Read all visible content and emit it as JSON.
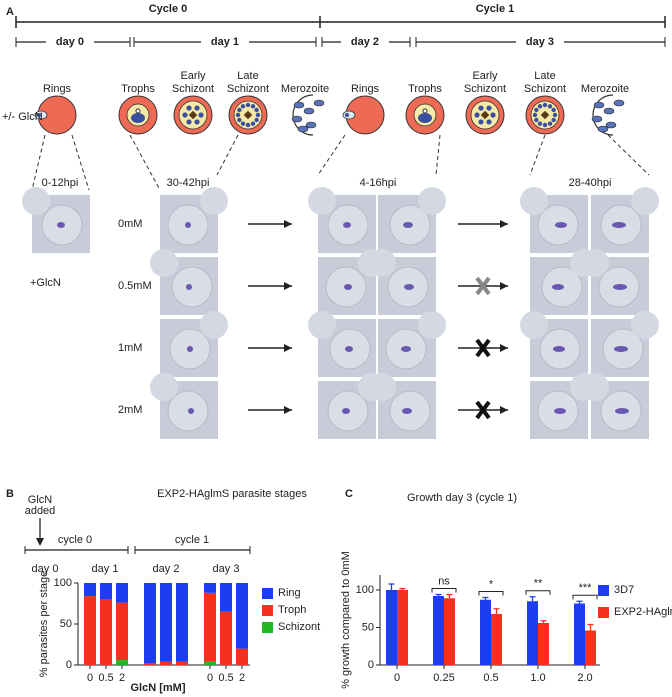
{
  "panel_labels": [
    "A",
    "B",
    "C"
  ],
  "panel_a": {
    "cycles": [
      "Cycle 0",
      "Cycle 1"
    ],
    "days": [
      "day 0",
      "day 1",
      "day 2",
      "day 3"
    ],
    "stages": [
      "Rings",
      "Trophs",
      "Early Schizont",
      "Late Schizont",
      "Merozoite",
      "Rings",
      "Trophs",
      "Early Schizont",
      "Late Schizont",
      "Merozoite"
    ],
    "treatment": "+/- GlcN",
    "timepoints": [
      "0-12hpi",
      "30-42hpi",
      "4-16hpi",
      "28-40hpi"
    ],
    "glcn_label": "+GlcN",
    "concentrations": [
      "0mM",
      "0.5mM",
      "1mM",
      "2mM"
    ]
  },
  "chart_data": [
    {
      "type": "bar",
      "stacked": true,
      "title": "EXP2-HAglmS parasite stages",
      "annotation_lines": [
        "GlcN",
        "added"
      ],
      "cycles": [
        "cycle 0",
        "cycle 1"
      ],
      "days": [
        "day 0",
        "day 1",
        "day 2",
        "day 3"
      ],
      "ylabel": "% parasites per stage",
      "xlabel": "GlcN [mM]",
      "categories": [
        "0",
        "0.5",
        "2",
        null,
        null,
        null,
        "0",
        "0.5",
        "2"
      ],
      "series": [
        {
          "name": "Schizont",
          "color": "#22b822",
          "values": [
            0,
            0,
            6,
            0,
            0,
            0,
            4,
            0,
            0
          ]
        },
        {
          "name": "Troph",
          "color": "#f4301e",
          "values": [
            84,
            80,
            70,
            2,
            4,
            4,
            84,
            65,
            20
          ]
        },
        {
          "name": "Ring",
          "color": "#1c3ef0",
          "values": [
            16,
            20,
            24,
            98,
            96,
            96,
            12,
            35,
            80
          ]
        }
      ],
      "ylim": [
        0,
        100
      ],
      "yticks": [
        0,
        50,
        100
      ],
      "legend": "right"
    },
    {
      "type": "bar",
      "title": "Growth day 3 (cycle 1)",
      "ylabel": "% growth compared to 0mM",
      "categories": [
        "0",
        "0.25",
        "0.5",
        "1.0",
        "2.0"
      ],
      "series": [
        {
          "name": "3D7",
          "color": "#1c3ef0",
          "values": [
            100,
            92,
            87,
            85,
            82
          ],
          "errors": [
            8,
            2,
            3,
            6,
            3
          ]
        },
        {
          "name": "EXP2-HAglmS",
          "color": "#f4301e",
          "values": [
            100,
            89,
            68,
            56,
            46
          ],
          "errors": [
            2,
            5,
            7,
            3,
            8
          ]
        }
      ],
      "significance": [
        null,
        "ns",
        "*",
        "**",
        "***"
      ],
      "ylim": [
        0,
        120
      ],
      "yticks": [
        0,
        50,
        100
      ],
      "legend": "right"
    }
  ]
}
